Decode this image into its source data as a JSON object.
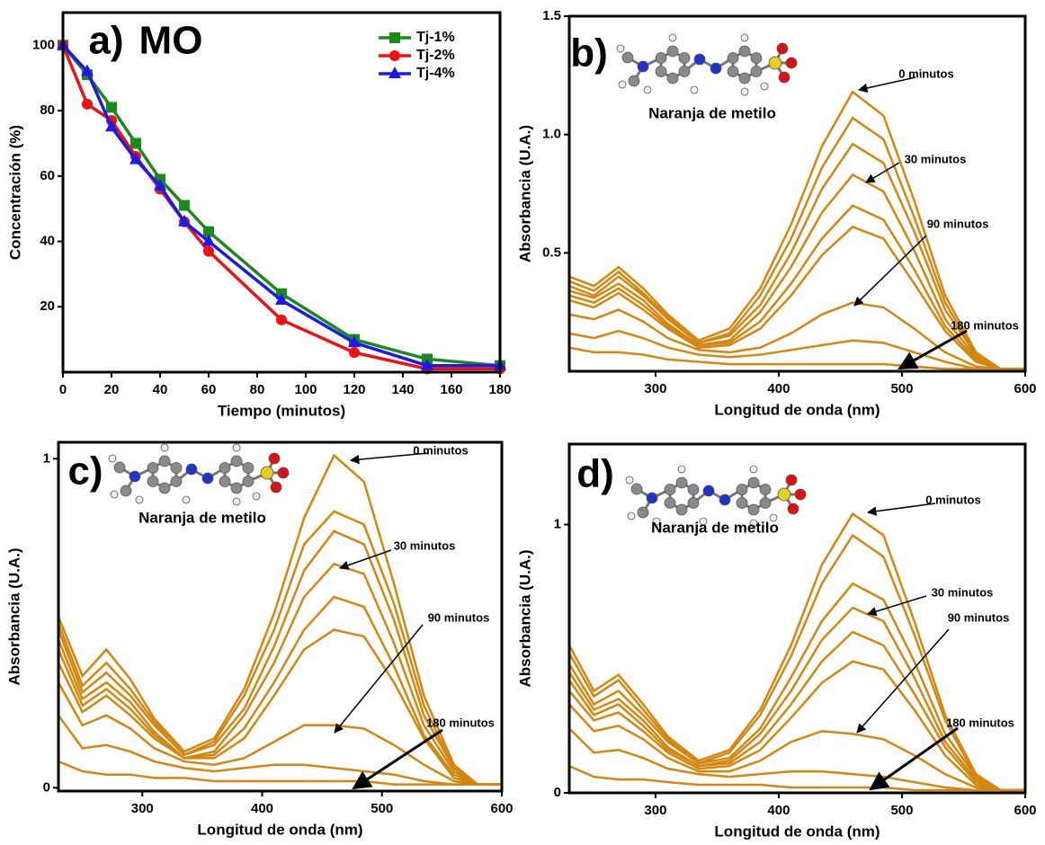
{
  "chart_data": [
    {
      "type": "line",
      "label": "a)",
      "title": "MO",
      "xlabel": "Tiempo (minutos)",
      "ylabel": "Concentración (%)",
      "x": [
        0,
        10,
        20,
        30,
        40,
        50,
        60,
        90,
        120,
        150,
        180
      ],
      "xlim": [
        0,
        180
      ],
      "xticks": [
        0,
        20,
        40,
        60,
        80,
        100,
        120,
        140,
        160,
        180
      ],
      "ylim": [
        0,
        110
      ],
      "yticks": [
        20,
        40,
        60,
        80,
        100
      ],
      "legend": "upper right",
      "series": [
        {
          "name": "Tj-1%",
          "color": "#1a8a1a",
          "marker": "square",
          "values": [
            100,
            91,
            81,
            70,
            59,
            51,
            43,
            24,
            10,
            4,
            2
          ]
        },
        {
          "name": "Tj-2%",
          "color": "#f01010",
          "marker": "circle",
          "values": [
            100,
            82,
            77,
            66,
            56,
            46,
            37,
            16,
            6,
            1,
            1
          ]
        },
        {
          "name": "Tj-4%",
          "color": "#1a1aee",
          "marker": "triangle",
          "values": [
            100,
            92,
            75,
            65,
            57,
            46,
            40,
            22,
            9,
            2,
            2
          ]
        }
      ]
    },
    {
      "type": "spectra",
      "label": "b)",
      "molecule_label": "Naranja de metilo",
      "annotations": [
        "0 minutos",
        "30 minutos",
        "90 minutos",
        "180 minutos"
      ],
      "xlabel": "Longitud de onda (nm)",
      "ylabel": "Absorbancia (U.A.)",
      "color": "#d4860f",
      "x": [
        230,
        250,
        270,
        290,
        310,
        335,
        360,
        385,
        410,
        435,
        460,
        485,
        510,
        535,
        560,
        580,
        600
      ],
      "xlim": [
        230,
        600
      ],
      "xticks": [
        300,
        400,
        500,
        600
      ],
      "ylim": [
        0,
        1.5
      ],
      "yticks": [
        0.5,
        {
          "value": 1,
          "label": "1.0"
        },
        {
          "value": 1.5,
          "label": "1.5"
        }
      ],
      "series": [
        {
          "values": [
            0.4,
            0.36,
            0.44,
            0.35,
            0.24,
            0.13,
            0.18,
            0.35,
            0.62,
            0.95,
            1.18,
            1.08,
            0.72,
            0.32,
            0.08,
            0.01,
            0.01
          ]
        },
        {
          "values": [
            0.38,
            0.34,
            0.42,
            0.33,
            0.23,
            0.12,
            0.16,
            0.32,
            0.56,
            0.86,
            1.07,
            0.98,
            0.65,
            0.29,
            0.07,
            0.01,
            0.01
          ]
        },
        {
          "values": [
            0.36,
            0.32,
            0.4,
            0.32,
            0.22,
            0.12,
            0.15,
            0.28,
            0.5,
            0.77,
            0.96,
            0.88,
            0.59,
            0.26,
            0.07,
            0.01,
            0.01
          ]
        },
        {
          "values": [
            0.34,
            0.31,
            0.37,
            0.3,
            0.2,
            0.11,
            0.13,
            0.25,
            0.44,
            0.67,
            0.83,
            0.76,
            0.51,
            0.22,
            0.06,
            0.01,
            0.01
          ]
        },
        {
          "values": [
            0.32,
            0.29,
            0.35,
            0.28,
            0.19,
            0.11,
            0.12,
            0.21,
            0.37,
            0.56,
            0.7,
            0.64,
            0.43,
            0.19,
            0.05,
            0.01,
            0.01
          ]
        },
        {
          "values": [
            0.3,
            0.27,
            0.33,
            0.26,
            0.18,
            0.1,
            0.11,
            0.18,
            0.32,
            0.49,
            0.61,
            0.56,
            0.37,
            0.17,
            0.04,
            0.01,
            0.01
          ]
        },
        {
          "values": [
            0.24,
            0.22,
            0.26,
            0.21,
            0.14,
            0.09,
            0.08,
            0.1,
            0.16,
            0.24,
            0.29,
            0.27,
            0.18,
            0.08,
            0.02,
            0.01,
            0.01
          ]
        },
        {
          "values": [
            0.16,
            0.14,
            0.17,
            0.14,
            0.1,
            0.07,
            0.06,
            0.07,
            0.09,
            0.11,
            0.13,
            0.12,
            0.08,
            0.04,
            0.01,
            0.01,
            0.01
          ]
        },
        {
          "values": [
            0.1,
            0.08,
            0.08,
            0.07,
            0.05,
            0.04,
            0.03,
            0.03,
            0.03,
            0.03,
            0.03,
            0.03,
            0.02,
            0.01,
            0.01,
            0.01,
            0.01
          ]
        }
      ]
    },
    {
      "type": "spectra",
      "label": "c)",
      "molecule_label": "Naranja de metilo",
      "annotations": [
        "0 minutos",
        "30 minutos",
        "90 minutos",
        "180 minutos"
      ],
      "xlabel": "Longitud de onda (nm)",
      "ylabel": "Absorbancia (U.A.)",
      "color": "#d4860f",
      "x": [
        230,
        250,
        270,
        290,
        310,
        335,
        360,
        385,
        410,
        435,
        460,
        485,
        510,
        535,
        560,
        580,
        600
      ],
      "xlim": [
        230,
        600
      ],
      "xticks": [
        300,
        400,
        500,
        600
      ],
      "ylim": [
        -0.01,
        1.05
      ],
      "yticks": [
        0,
        1
      ],
      "series": [
        {
          "values": [
            0.52,
            0.34,
            0.42,
            0.33,
            0.21,
            0.11,
            0.15,
            0.3,
            0.53,
            0.82,
            1.01,
            0.93,
            0.62,
            0.28,
            0.07,
            0.01,
            0.01
          ]
        },
        {
          "values": [
            0.5,
            0.31,
            0.38,
            0.3,
            0.2,
            0.1,
            0.14,
            0.28,
            0.48,
            0.74,
            0.84,
            0.8,
            0.56,
            0.25,
            0.06,
            0.01,
            0.01
          ]
        },
        {
          "values": [
            0.48,
            0.29,
            0.35,
            0.28,
            0.19,
            0.1,
            0.13,
            0.24,
            0.43,
            0.66,
            0.78,
            0.74,
            0.51,
            0.22,
            0.06,
            0.01,
            0.01
          ]
        },
        {
          "values": [
            0.45,
            0.27,
            0.32,
            0.26,
            0.17,
            0.09,
            0.11,
            0.22,
            0.38,
            0.58,
            0.68,
            0.65,
            0.44,
            0.19,
            0.05,
            0.01,
            0.01
          ]
        },
        {
          "values": [
            0.42,
            0.25,
            0.3,
            0.24,
            0.16,
            0.09,
            0.1,
            0.18,
            0.32,
            0.48,
            0.58,
            0.55,
            0.37,
            0.16,
            0.04,
            0.01,
            0.01
          ]
        },
        {
          "values": [
            0.38,
            0.23,
            0.28,
            0.22,
            0.15,
            0.09,
            0.09,
            0.15,
            0.28,
            0.42,
            0.48,
            0.46,
            0.32,
            0.15,
            0.03,
            0.01,
            0.01
          ]
        },
        {
          "values": [
            0.32,
            0.19,
            0.22,
            0.18,
            0.12,
            0.08,
            0.07,
            0.09,
            0.14,
            0.19,
            0.19,
            0.18,
            0.13,
            0.07,
            0.02,
            0.01,
            0.01
          ]
        },
        {
          "values": [
            0.22,
            0.12,
            0.13,
            0.11,
            0.08,
            0.06,
            0.05,
            0.06,
            0.07,
            0.07,
            0.06,
            0.05,
            0.04,
            0.02,
            0.01,
            0.01,
            0.01
          ]
        },
        {
          "values": [
            0.08,
            0.05,
            0.04,
            0.04,
            0.03,
            0.03,
            0.02,
            0.02,
            0.02,
            0.02,
            0.02,
            0.02,
            0.01,
            0.01,
            0.01,
            0.01,
            0.01
          ]
        }
      ]
    },
    {
      "type": "spectra",
      "label": "d)",
      "molecule_label": "Naranja de metilo",
      "annotations": [
        "0 minutos",
        "30 minutos",
        "90 minutos",
        "180 minutos"
      ],
      "xlabel": "Longitud de onda (nm)",
      "ylabel": "Absorbancia (U.A.)",
      "color": "#d4860f",
      "x": [
        230,
        250,
        270,
        290,
        310,
        335,
        360,
        385,
        410,
        435,
        460,
        485,
        510,
        535,
        560,
        580,
        600
      ],
      "xlim": [
        230,
        600
      ],
      "xticks": [
        300,
        400,
        500,
        600
      ],
      "ylim": [
        0,
        1.3
      ],
      "yticks": [
        0,
        1
      ],
      "series": [
        {
          "values": [
            0.55,
            0.38,
            0.44,
            0.33,
            0.21,
            0.12,
            0.16,
            0.31,
            0.55,
            0.85,
            1.04,
            0.96,
            0.64,
            0.29,
            0.07,
            0.01,
            0.01
          ]
        },
        {
          "values": [
            0.52,
            0.36,
            0.42,
            0.31,
            0.2,
            0.11,
            0.15,
            0.29,
            0.51,
            0.78,
            0.96,
            0.88,
            0.59,
            0.27,
            0.06,
            0.01,
            0.01
          ]
        },
        {
          "values": [
            0.48,
            0.33,
            0.38,
            0.29,
            0.19,
            0.11,
            0.13,
            0.24,
            0.43,
            0.64,
            0.78,
            0.72,
            0.49,
            0.22,
            0.06,
            0.01,
            0.01
          ]
        },
        {
          "values": [
            0.45,
            0.31,
            0.35,
            0.27,
            0.17,
            0.1,
            0.12,
            0.22,
            0.38,
            0.57,
            0.69,
            0.64,
            0.43,
            0.19,
            0.05,
            0.01,
            0.01
          ]
        },
        {
          "values": [
            0.42,
            0.29,
            0.33,
            0.25,
            0.16,
            0.1,
            0.11,
            0.19,
            0.33,
            0.49,
            0.6,
            0.55,
            0.37,
            0.17,
            0.04,
            0.01,
            0.01
          ]
        },
        {
          "values": [
            0.38,
            0.27,
            0.3,
            0.23,
            0.15,
            0.09,
            0.1,
            0.16,
            0.28,
            0.41,
            0.49,
            0.46,
            0.31,
            0.14,
            0.03,
            0.01,
            0.01
          ]
        },
        {
          "values": [
            0.33,
            0.23,
            0.25,
            0.2,
            0.13,
            0.08,
            0.08,
            0.12,
            0.19,
            0.23,
            0.22,
            0.2,
            0.14,
            0.07,
            0.02,
            0.01,
            0.01
          ]
        },
        {
          "values": [
            0.24,
            0.15,
            0.16,
            0.13,
            0.09,
            0.07,
            0.06,
            0.07,
            0.08,
            0.08,
            0.07,
            0.06,
            0.04,
            0.02,
            0.01,
            0.01,
            0.01
          ]
        },
        {
          "values": [
            0.1,
            0.06,
            0.05,
            0.05,
            0.04,
            0.03,
            0.03,
            0.03,
            0.02,
            0.02,
            0.02,
            0.02,
            0.01,
            0.01,
            0.01,
            0.01,
            0.01
          ]
        }
      ]
    }
  ]
}
